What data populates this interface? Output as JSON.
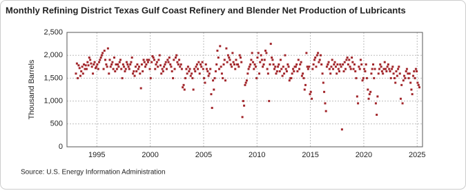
{
  "chart_data": {
    "type": "scatter",
    "title": "Monthly Refining District Texas Gulf Coast Refinery and Blender Net Production of Lubricants",
    "y_label": "Thousand Barrels",
    "source": "Source: U.S. Energy Information Administration",
    "color": "#a2262b",
    "grid": true,
    "xlim": [
      1992.2,
      2025.5
    ],
    "xticks": [
      1995,
      2000,
      2005,
      2010,
      2015,
      2020,
      2025
    ],
    "ylim": [
      0,
      2500
    ],
    "yticks": [
      0,
      500,
      {
        "value": 1000,
        "label": "1,000"
      },
      {
        "value": 1500,
        "label": "1,500"
      },
      {
        "value": 2000,
        "label": "2,000"
      },
      {
        "value": 2500,
        "label": "2,500"
      }
    ],
    "x": [
      1993.04,
      1993.13,
      1993.21,
      1993.29,
      1993.38,
      1993.46,
      1993.54,
      1993.63,
      1993.71,
      1993.79,
      1993.88,
      1993.96,
      1994.04,
      1994.13,
      1994.21,
      1994.29,
      1994.38,
      1994.46,
      1994.54,
      1994.63,
      1994.71,
      1994.79,
      1994.88,
      1994.96,
      1995.04,
      1995.13,
      1995.21,
      1995.29,
      1995.38,
      1995.46,
      1995.54,
      1995.63,
      1995.71,
      1995.79,
      1995.88,
      1995.96,
      1996.04,
      1996.13,
      1996.21,
      1996.29,
      1996.38,
      1996.46,
      1996.54,
      1996.63,
      1996.71,
      1996.79,
      1996.88,
      1996.96,
      1997.04,
      1997.13,
      1997.21,
      1997.29,
      1997.38,
      1997.46,
      1997.54,
      1997.63,
      1997.71,
      1997.79,
      1997.88,
      1997.96,
      1998.04,
      1998.13,
      1998.21,
      1998.29,
      1998.38,
      1998.46,
      1998.54,
      1998.63,
      1998.71,
      1998.79,
      1998.88,
      1998.96,
      1999.04,
      1999.13,
      1999.21,
      1999.29,
      1999.38,
      1999.46,
      1999.54,
      1999.63,
      1999.71,
      1999.79,
      1999.88,
      1999.96,
      2000.04,
      2000.13,
      2000.21,
      2000.29,
      2000.38,
      2000.46,
      2000.54,
      2000.63,
      2000.71,
      2000.79,
      2000.88,
      2000.96,
      2001.04,
      2001.13,
      2001.21,
      2001.29,
      2001.38,
      2001.46,
      2001.54,
      2001.63,
      2001.71,
      2001.79,
      2001.88,
      2001.96,
      2002.04,
      2002.13,
      2002.21,
      2002.29,
      2002.38,
      2002.46,
      2002.54,
      2002.63,
      2002.71,
      2002.79,
      2002.88,
      2002.96,
      2003.04,
      2003.13,
      2003.21,
      2003.29,
      2003.38,
      2003.46,
      2003.54,
      2003.63,
      2003.71,
      2003.79,
      2003.88,
      2003.96,
      2004.04,
      2004.13,
      2004.21,
      2004.29,
      2004.38,
      2004.46,
      2004.54,
      2004.63,
      2004.71,
      2004.79,
      2004.88,
      2004.96,
      2005.04,
      2005.13,
      2005.21,
      2005.29,
      2005.38,
      2005.46,
      2005.54,
      2005.63,
      2005.71,
      2005.79,
      2005.88,
      2005.96,
      2006.04,
      2006.13,
      2006.21,
      2006.29,
      2006.38,
      2006.46,
      2006.54,
      2006.63,
      2006.71,
      2006.79,
      2006.88,
      2006.96,
      2007.04,
      2007.13,
      2007.21,
      2007.29,
      2007.38,
      2007.46,
      2007.54,
      2007.63,
      2007.71,
      2007.79,
      2007.88,
      2007.96,
      2008.04,
      2008.13,
      2008.21,
      2008.29,
      2008.38,
      2008.46,
      2008.54,
      2008.63,
      2008.71,
      2008.79,
      2008.88,
      2008.96,
      2009.04,
      2009.13,
      2009.21,
      2009.29,
      2009.38,
      2009.46,
      2009.54,
      2009.63,
      2009.71,
      2009.79,
      2009.88,
      2009.96,
      2010.04,
      2010.13,
      2010.21,
      2010.29,
      2010.38,
      2010.46,
      2010.54,
      2010.63,
      2010.71,
      2010.79,
      2010.88,
      2010.96,
      2011.04,
      2011.13,
      2011.21,
      2011.29,
      2011.38,
      2011.46,
      2011.54,
      2011.63,
      2011.71,
      2011.79,
      2011.88,
      2011.96,
      2012.04,
      2012.13,
      2012.21,
      2012.29,
      2012.38,
      2012.46,
      2012.54,
      2012.63,
      2012.71,
      2012.79,
      2012.88,
      2012.96,
      2013.04,
      2013.13,
      2013.21,
      2013.29,
      2013.38,
      2013.46,
      2013.54,
      2013.63,
      2013.71,
      2013.79,
      2013.88,
      2013.96,
      2014.04,
      2014.13,
      2014.21,
      2014.29,
      2014.38,
      2014.46,
      2014.54,
      2014.63,
      2014.71,
      2014.79,
      2014.88,
      2014.96,
      2015.04,
      2015.13,
      2015.21,
      2015.29,
      2015.38,
      2015.46,
      2015.54,
      2015.63,
      2015.71,
      2015.79,
      2015.88,
      2015.96,
      2016.04,
      2016.13,
      2016.21,
      2016.29,
      2016.38,
      2016.46,
      2016.54,
      2016.63,
      2016.71,
      2016.79,
      2016.88,
      2016.96,
      2017.04,
      2017.13,
      2017.21,
      2017.29,
      2017.38,
      2017.46,
      2017.54,
      2017.63,
      2017.71,
      2017.79,
      2017.88,
      2017.96,
      2018.04,
      2018.13,
      2018.21,
      2018.29,
      2018.38,
      2018.46,
      2018.54,
      2018.63,
      2018.71,
      2018.79,
      2018.88,
      2018.96,
      2019.04,
      2019.13,
      2019.21,
      2019.29,
      2019.38,
      2019.46,
      2019.54,
      2019.63,
      2019.71,
      2019.79,
      2019.88,
      2019.96,
      2020.04,
      2020.13,
      2020.21,
      2020.29,
      2020.38,
      2020.46,
      2020.54,
      2020.63,
      2020.71,
      2020.79,
      2020.88,
      2020.96,
      2021.04,
      2021.13,
      2021.21,
      2021.29,
      2021.38,
      2021.46,
      2021.54,
      2021.63,
      2021.71,
      2021.79,
      2021.88,
      2021.96,
      2022.04,
      2022.13,
      2022.21,
      2022.29,
      2022.38,
      2022.46,
      2022.54,
      2022.63,
      2022.71,
      2022.79,
      2022.88,
      2022.96,
      2023.04,
      2023.13,
      2023.21,
      2023.29,
      2023.38,
      2023.46,
      2023.54,
      2023.63,
      2023.71,
      2023.79,
      2023.88,
      2023.96,
      2024.04,
      2024.13,
      2024.21,
      2024.29,
      2024.38,
      2024.46,
      2024.54,
      2024.63,
      2024.71,
      2024.79,
      2024.88,
      2024.96,
      2025.04,
      2025.13,
      2025.21
    ],
    "values": [
      1600,
      1820,
      1500,
      1780,
      1720,
      1550,
      1650,
      1750,
      1600,
      1800,
      1700,
      1780,
      1700,
      1850,
      1780,
      1950,
      1900,
      1820,
      1750,
      1600,
      1800,
      1850,
      1720,
      1750,
      1800,
      1700,
      1850,
      1900,
      1950,
      2000,
      2050,
      1700,
      2100,
      1900,
      1800,
      1750,
      2150,
      1600,
      1900,
      1750,
      1800,
      1850,
      1700,
      1950,
      1650,
      1800,
      1700,
      1800,
      1750,
      1850,
      1900,
      1700,
      1500,
      1800,
      1750,
      1650,
      1700,
      1850,
      1800,
      1750,
      1700,
      1800,
      1850,
      1950,
      1600,
      1650,
      1550,
      1750,
      1650,
      1800,
      1700,
      1750,
      1600,
      1280,
      1800,
      1650,
      1900,
      1850,
      1750,
      1800,
      1900,
      1850,
      1900,
      1700,
      1500,
      1850,
      1980,
      1950,
      1900,
      1700,
      1800,
      1850,
      1750,
      1900,
      2000,
      1780,
      1600,
      1700,
      1650,
      1750,
      1800,
      1850,
      1700,
      1900,
      1850,
      1950,
      1800,
      1750,
      1650,
      1500,
      1900,
      1700,
      1950,
      2000,
      1850,
      1800,
      1900,
      1750,
      1800,
      1700,
      1300,
      1350,
      1250,
      1500,
      1700,
      1600,
      1750,
      1650,
      1700,
      1550,
      1600,
      1500,
      1250,
      1700,
      1650,
      1750,
      1800,
      1700,
      1850,
      1600,
      1800,
      1750,
      1850,
      1700,
      1500,
      1400,
      1800,
      1700,
      1650,
      1550,
      1600,
      1700,
      1150,
      850,
      1450,
      1250,
      1500,
      1650,
      1800,
      2100,
      1950,
      1700,
      2200,
      1750,
      1600,
      1500,
      1800,
      1900,
      1450,
      2150,
      1850,
      2000,
      1950,
      1900,
      1800,
      1750,
      2050,
      1850,
      1800,
      1700,
      1900,
      1800,
      1800,
      1750,
      2000,
      1950,
      1850,
      650,
      1000,
      900,
      1350,
      1400,
      1450,
      1600,
      1700,
      1750,
      1800,
      1900,
      2050,
      1850,
      1700,
      1800,
      1750,
      1500,
      1950,
      2050,
      1600,
      1850,
      2000,
      1900,
      1750,
      1800,
      1900,
      2100,
      2050,
      1700,
      1600,
      1000,
      1800,
      2250,
      1950,
      1900,
      1800,
      1700,
      1750,
      1600,
      1650,
      1750,
      1800,
      1650,
      1900,
      1700,
      1550,
      1750,
      1600,
      2000,
      1700,
      1650,
      1800,
      1750,
      1450,
      1500,
      1500,
      1600,
      1700,
      1650,
      1750,
      1750,
      1800,
      1650,
      1900,
      1700,
      1800,
      1850,
      1550,
      1600,
      1500,
      1250,
      1350,
      2050,
      1750,
      1700,
      1750,
      1150,
      1200,
      1050,
      1700,
      1800,
      1900,
      1950,
      1750,
      2000,
      2050,
      1850,
      1900,
      2000,
      1800,
      1600,
      1400,
      1200,
      950,
      780,
      1750,
      1800,
      1850,
      1700,
      1600,
      1750,
      1900,
      1700,
      1800,
      1850,
      1750,
      1600,
      1800,
      1700,
      1650,
      1800,
      1750,
      380,
      1800,
      1650,
      1850,
      1700,
      1900,
      1950,
      1800,
      1900,
      1750,
      1700,
      1950,
      1850,
      1700,
      1800,
      1650,
      1500,
      1100,
      950,
      1750,
      1700,
      1900,
      1800,
      1450,
      1500,
      1700,
      1650,
      1800,
      1500,
      1250,
      1050,
      1150,
      1200,
      1600,
      1700,
      1800,
      1500,
      1700,
      950,
      700,
      1100,
      1600,
      1700,
      1800,
      1750,
      1650,
      1600,
      1700,
      1850,
      1700,
      1650,
      1750,
      1800,
      1700,
      1650,
      1500,
      1700,
      1750,
      1600,
      1500,
      1400,
      1650,
      1550,
      1700,
      1750,
      1600,
      1050,
      1350,
      950,
      1450,
      1550,
      1500,
      1650,
      1700,
      1600,
      1500,
      1600,
      1400,
      1250,
      1150,
      1550,
      1650,
      1500,
      1700,
      1650,
      1400,
      1350,
      1300
    ]
  }
}
